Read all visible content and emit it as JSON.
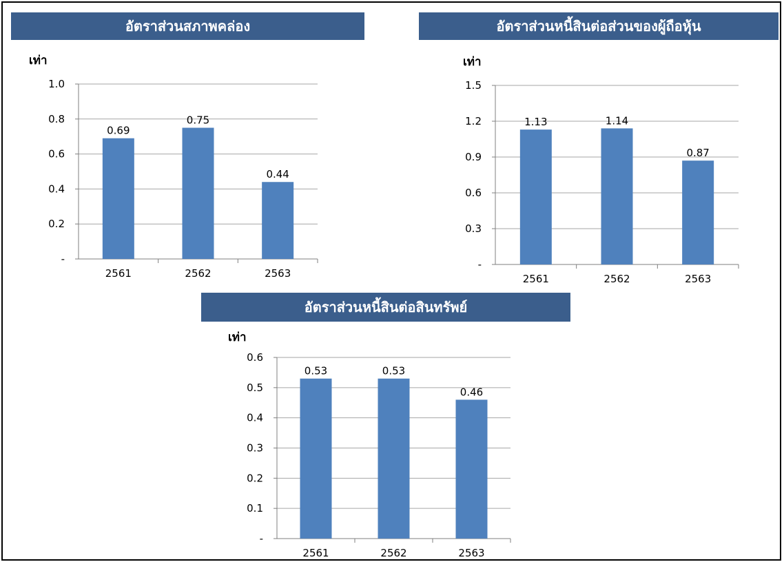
{
  "chart_data": [
    {
      "type": "bar",
      "title": "อัตราส่วนสภาพคล่อง",
      "ylabel": "เท่า",
      "categories": [
        "2561",
        "2562",
        "2563"
      ],
      "values": [
        0.69,
        0.75,
        0.44
      ],
      "data_labels": [
        "0.69",
        "0.75",
        "0.44"
      ],
      "yticks": [
        0,
        0.2,
        0.4,
        0.6,
        0.8,
        1.0
      ],
      "ytick_labels": [
        "-",
        "0.2",
        "0.4",
        "0.6",
        "0.8",
        "1.0"
      ],
      "ylim": [
        0,
        1.0
      ],
      "grid": true,
      "bar_color": "#4f81bd"
    },
    {
      "type": "bar",
      "title": "อัตราส่วนหนี้สินต่อส่วนของผู้ถือหุ้น",
      "ylabel": "เท่า",
      "categories": [
        "2561",
        "2562",
        "2563"
      ],
      "values": [
        1.13,
        1.14,
        0.87
      ],
      "data_labels": [
        "1.13",
        "1.14",
        "0.87"
      ],
      "yticks": [
        0,
        0.3,
        0.6,
        0.9,
        1.2,
        1.5
      ],
      "ytick_labels": [
        "-",
        "0.3",
        "0.6",
        "0.9",
        "1.2",
        "1.5"
      ],
      "ylim": [
        0,
        1.5
      ],
      "grid": true,
      "bar_color": "#4f81bd"
    },
    {
      "type": "bar",
      "title": "อัตราส่วนหนี้สินต่อสินทรัพย์",
      "ylabel": "เท่า",
      "categories": [
        "2561",
        "2562",
        "2563"
      ],
      "values": [
        0.53,
        0.53,
        0.46
      ],
      "data_labels": [
        "0.53",
        "0.53",
        "0.46"
      ],
      "yticks": [
        0,
        0.1,
        0.2,
        0.3,
        0.4,
        0.5,
        0.6
      ],
      "ytick_labels": [
        "-",
        "0.1",
        "0.2",
        "0.3",
        "0.4",
        "0.5",
        "0.6"
      ],
      "ylim": [
        0,
        0.6
      ],
      "grid": true,
      "bar_color": "#4f81bd"
    }
  ],
  "colors": {
    "title_background": "#3b5e8c",
    "title_text": "#ffffff",
    "gridline": "#a6a6a6",
    "axis": "#7f7f7f"
  }
}
